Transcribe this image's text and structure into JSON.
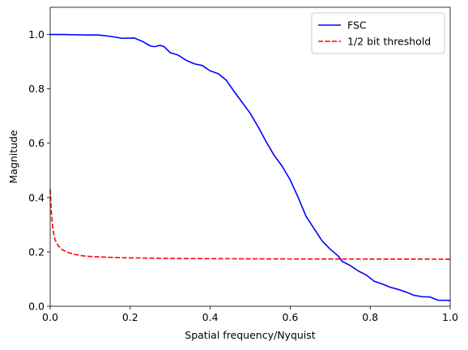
{
  "chart_data": {
    "type": "line",
    "xlabel": "Spatial frequency/Nyquist",
    "ylabel": "Magnitude",
    "xlim": [
      0,
      1.0
    ],
    "ylim": [
      0,
      1.1
    ],
    "xticks": [
      "0.0",
      "0.2",
      "0.4",
      "0.6",
      "0.8",
      "1.0"
    ],
    "yticks": [
      "0.0",
      "0.2",
      "0.4",
      "0.6",
      "0.8",
      "1.0"
    ],
    "xtick_values": [
      0,
      0.2,
      0.4,
      0.6,
      0.8,
      1.0
    ],
    "ytick_values": [
      0,
      0.2,
      0.4,
      0.6,
      0.8,
      1.0
    ],
    "grid": false,
    "legend_position": "top-right",
    "series": [
      {
        "name": "FSC",
        "color": "#0000ff",
        "style": "solid",
        "points": [
          [
            0.0,
            1.0
          ],
          [
            0.03,
            1.0
          ],
          [
            0.06,
            0.999
          ],
          [
            0.09,
            0.998
          ],
          [
            0.12,
            0.998
          ],
          [
            0.15,
            0.993
          ],
          [
            0.18,
            0.986
          ],
          [
            0.21,
            0.987
          ],
          [
            0.23,
            0.975
          ],
          [
            0.25,
            0.958
          ],
          [
            0.26,
            0.955
          ],
          [
            0.275,
            0.96
          ],
          [
            0.285,
            0.955
          ],
          [
            0.3,
            0.933
          ],
          [
            0.32,
            0.924
          ],
          [
            0.34,
            0.905
          ],
          [
            0.36,
            0.892
          ],
          [
            0.38,
            0.886
          ],
          [
            0.4,
            0.866
          ],
          [
            0.42,
            0.856
          ],
          [
            0.44,
            0.832
          ],
          [
            0.46,
            0.79
          ],
          [
            0.48,
            0.75
          ],
          [
            0.5,
            0.71
          ],
          [
            0.52,
            0.66
          ],
          [
            0.54,
            0.605
          ],
          [
            0.56,
            0.555
          ],
          [
            0.58,
            0.515
          ],
          [
            0.6,
            0.465
          ],
          [
            0.62,
            0.4
          ],
          [
            0.64,
            0.33
          ],
          [
            0.66,
            0.285
          ],
          [
            0.68,
            0.24
          ],
          [
            0.7,
            0.21
          ],
          [
            0.72,
            0.185
          ],
          [
            0.73,
            0.165
          ],
          [
            0.75,
            0.15
          ],
          [
            0.77,
            0.13
          ],
          [
            0.79,
            0.115
          ],
          [
            0.81,
            0.092
          ],
          [
            0.83,
            0.082
          ],
          [
            0.85,
            0.07
          ],
          [
            0.87,
            0.062
          ],
          [
            0.89,
            0.052
          ],
          [
            0.91,
            0.04
          ],
          [
            0.93,
            0.035
          ],
          [
            0.95,
            0.034
          ],
          [
            0.97,
            0.022
          ],
          [
            0.99,
            0.022
          ],
          [
            1.0,
            0.021
          ]
        ]
      },
      {
        "name": "1/2 bit threshold",
        "color": "#ff0000",
        "style": "dashed",
        "points": [
          [
            0.0,
            0.43
          ],
          [
            0.003,
            0.34
          ],
          [
            0.007,
            0.28
          ],
          [
            0.012,
            0.245
          ],
          [
            0.02,
            0.222
          ],
          [
            0.03,
            0.208
          ],
          [
            0.045,
            0.198
          ],
          [
            0.06,
            0.191
          ],
          [
            0.08,
            0.186
          ],
          [
            0.1,
            0.183
          ],
          [
            0.15,
            0.18
          ],
          [
            0.2,
            0.178
          ],
          [
            0.3,
            0.176
          ],
          [
            0.4,
            0.175
          ],
          [
            0.5,
            0.1745
          ],
          [
            0.6,
            0.174
          ],
          [
            0.7,
            0.1738
          ],
          [
            0.8,
            0.1736
          ],
          [
            0.9,
            0.1734
          ],
          [
            1.0,
            0.1732
          ]
        ]
      }
    ]
  }
}
